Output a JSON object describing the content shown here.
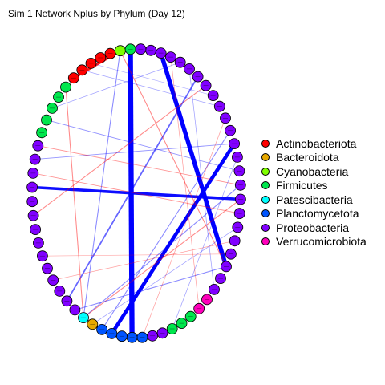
{
  "title": "Sim 1 Network Nplus by Phylum (Day 12)",
  "legend": [
    {
      "label": "Actinobacteriota",
      "color": "#ff0000"
    },
    {
      "label": "Bacteroidota",
      "color": "#e6a800"
    },
    {
      "label": "Cyanobacteria",
      "color": "#7fff00"
    },
    {
      "label": "Firmicutes",
      "color": "#00e64d"
    },
    {
      "label": "Patescibacteria",
      "color": "#00ffff"
    },
    {
      "label": "Planctomycetota",
      "color": "#0055ff"
    },
    {
      "label": "Proteobacteria",
      "color": "#8000ff"
    },
    {
      "label": "Verrucomicrobiota",
      "color": "#ff00bb"
    }
  ],
  "node_phyla": [
    "Proteobacteria",
    "Proteobacteria",
    "Proteobacteria",
    "Proteobacteria",
    "Proteobacteria",
    "Proteobacteria",
    "Proteobacteria",
    "Proteobacteria",
    "Proteobacteria",
    "Proteobacteria",
    "Proteobacteria",
    "Proteobacteria",
    "Proteobacteria",
    "Proteobacteria",
    "Proteobacteria",
    "Proteobacteria",
    "Proteobacteria",
    "Proteobacteria",
    "Proteobacteria",
    "Proteobacteria",
    "Proteobacteria",
    "Proteobacteria",
    "Proteobacteria",
    "Verrucomicrobiota",
    "Verrucomicrobiota",
    "Firmicutes",
    "Firmicutes",
    "Firmicutes",
    "Proteobacteria",
    "Proteobacteria",
    "Planctomycetota",
    "Planctomycetota",
    "Planctomycetota",
    "Planctomycetota",
    "Planctomycetota",
    "Bacteroidota",
    "Patescibacteria",
    "Proteobacteria",
    "Proteobacteria",
    "Proteobacteria",
    "Proteobacteria",
    "Proteobacteria",
    "Proteobacteria",
    "Proteobacteria",
    "Proteobacteria",
    "Proteobacteria",
    "Proteobacteria",
    "Proteobacteria",
    "Proteobacteria",
    "Proteobacteria",
    "Proteobacteria",
    "Firmicutes",
    "Firmicutes",
    "Firmicutes",
    "Firmicutes",
    "Firmicutes",
    "Actinobacteriota",
    "Actinobacteriota",
    "Actinobacteriota",
    "Actinobacteriota",
    "Actinobacteriota",
    "Cyanobacteria",
    "Firmicutes",
    "Proteobacteria"
  ],
  "edges": [
    {
      "from": 1,
      "to": 20,
      "sign": "positive",
      "weight": 3.0
    },
    {
      "from": 62,
      "to": 31,
      "sign": "positive",
      "weight": 3.5
    },
    {
      "from": 11,
      "to": 33,
      "sign": "positive",
      "weight": 2.5
    },
    {
      "from": 15,
      "to": 47,
      "sign": "positive",
      "weight": 2.0
    },
    {
      "from": 61,
      "to": 56,
      "sign": "negative",
      "weight": 1.8
    },
    {
      "from": 5,
      "to": 38,
      "sign": "positive",
      "weight": 1.0
    },
    {
      "from": 61,
      "to": 36,
      "sign": "positive",
      "weight": 0.6
    },
    {
      "from": 61,
      "to": 20,
      "sign": "negative",
      "weight": 0.6
    },
    {
      "from": 55,
      "to": 36,
      "sign": "negative",
      "weight": 0.6
    },
    {
      "from": 10,
      "to": 34,
      "sign": "positive",
      "weight": 0.6
    },
    {
      "from": 14,
      "to": 36,
      "sign": "positive",
      "weight": 0.6
    },
    {
      "from": 6,
      "to": 45,
      "sign": "negative",
      "weight": 0.6
    },
    {
      "from": 15,
      "to": 36,
      "sign": "negative",
      "weight": 0.6
    },
    {
      "from": 20,
      "to": 37,
      "sign": "positive",
      "weight": 0.6
    },
    {
      "from": 11,
      "to": 49,
      "sign": "positive",
      "weight": 0.5
    },
    {
      "from": 13,
      "to": 52,
      "sign": "positive",
      "weight": 0.5
    },
    {
      "from": 14,
      "to": 50,
      "sign": "negative",
      "weight": 0.5
    },
    {
      "from": 16,
      "to": 48,
      "sign": "negative",
      "weight": 0.5
    },
    {
      "from": 3,
      "to": 53,
      "sign": "positive",
      "weight": 0.4
    },
    {
      "from": 8,
      "to": 57,
      "sign": "positive",
      "weight": 0.4
    },
    {
      "from": 4,
      "to": 22,
      "sign": "positive",
      "weight": 0.4
    },
    {
      "from": 2,
      "to": 24,
      "sign": "negative",
      "weight": 0.4
    },
    {
      "from": 18,
      "to": 40,
      "sign": "negative",
      "weight": 0.4
    },
    {
      "from": 12,
      "to": 27,
      "sign": "positive",
      "weight": 0.4
    },
    {
      "from": 9,
      "to": 30,
      "sign": "negative",
      "weight": 0.4
    },
    {
      "from": 17,
      "to": 35,
      "sign": "positive",
      "weight": 0.4
    },
    {
      "from": 7,
      "to": 58,
      "sign": "positive",
      "weight": 0.3
    },
    {
      "from": 19,
      "to": 42,
      "sign": "negative",
      "weight": 0.3
    }
  ]
}
